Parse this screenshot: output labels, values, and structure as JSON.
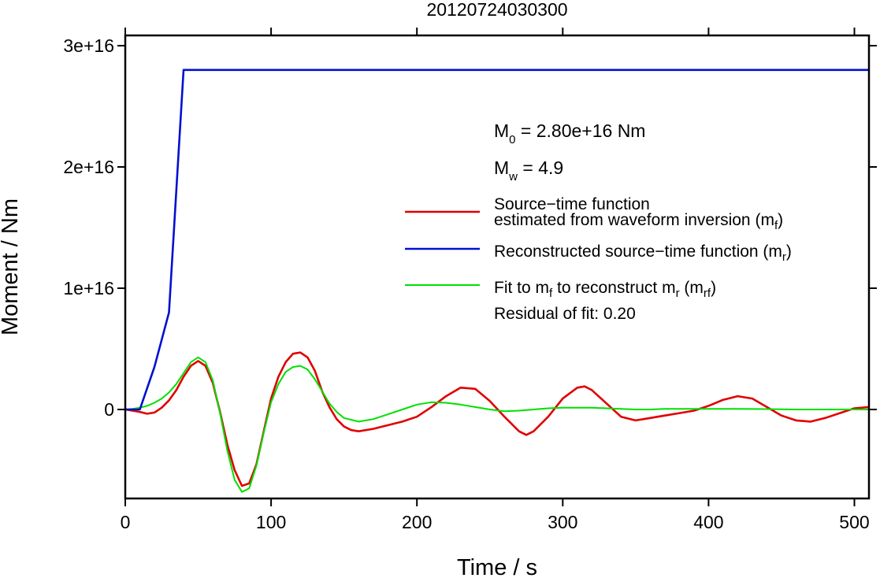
{
  "chart_data": {
    "type": "line",
    "title": "20120724030300",
    "xlabel": "Time / s",
    "ylabel": "Moment / Nm",
    "xlim": [
      0,
      510
    ],
    "ylim": [
      -7500000000000000.0,
      3.05e+16
    ],
    "x_ticks": [
      0,
      100,
      200,
      300,
      400,
      500
    ],
    "x_tick_labels": [
      "0",
      "100",
      "200",
      "300",
      "400",
      "500"
    ],
    "y_ticks": [
      0,
      1e+16,
      2e+16,
      3e+16
    ],
    "y_tick_labels": [
      "0",
      "1e+16",
      "2e+16",
      "3e+16"
    ],
    "grid": false,
    "legend_position": "right",
    "annotations": {
      "m0_label": "M",
      "m0_sub": "0",
      "m0_value": " = 2.80e+16 Nm",
      "mw_label": "M",
      "mw_sub": "w",
      "mw_value": " = 4.9",
      "residual": "Residual of fit: 0.20"
    },
    "legend": [
      {
        "line1": "Source−time function",
        "line2_pre": "estimated from waveform inversion (m",
        "line2_sub": "f",
        "line2_post": ")",
        "color": "#e00000"
      },
      {
        "pre": "Reconstructed source−time function (m",
        "sub": "r",
        "post": ")",
        "color": "#0010d0"
      },
      {
        "pre": "Fit to m",
        "sub1": "f",
        "mid": " to reconstruct m",
        "sub2": "r",
        "mid2": " (m",
        "sub3": "rf",
        "post": ")",
        "color": "#00e000"
      }
    ],
    "series": [
      {
        "name": "Source−time function estimated from waveform inversion (mf)",
        "color": "#e00000",
        "x": [
          0,
          5,
          10,
          15,
          20,
          25,
          30,
          35,
          40,
          45,
          50,
          55,
          60,
          65,
          70,
          75,
          80,
          85,
          90,
          95,
          100,
          105,
          110,
          115,
          120,
          125,
          130,
          135,
          140,
          145,
          150,
          155,
          160,
          170,
          180,
          190,
          200,
          210,
          220,
          230,
          240,
          250,
          260,
          270,
          275,
          280,
          290,
          300,
          310,
          315,
          320,
          330,
          340,
          350,
          360,
          370,
          380,
          390,
          400,
          410,
          420,
          430,
          440,
          450,
          460,
          470,
          480,
          490,
          500,
          510
        ],
        "y": [
          0,
          -100000000000000.0,
          -200000000000000.0,
          -350000000000000.0,
          -250000000000000.0,
          150000000000000.0,
          750000000000000.0,
          1600000000000000.0,
          2700000000000000.0,
          3600000000000000.0,
          4000000000000000.0,
          3600000000000000.0,
          2200000000000000.0,
          -200000000000000.0,
          -2900000000000000.0,
          -5000000000000000.0,
          -6300000000000000.0,
          -6100000000000000.0,
          -4500000000000000.0,
          -1800000000000000.0,
          900000000000000.0,
          2700000000000000.0,
          3900000000000000.0,
          4600000000000000.0,
          4700000000000000.0,
          4300000000000000.0,
          3200000000000000.0,
          1500000000000000.0,
          200000000000000.0,
          -800000000000000.0,
          -1400000000000000.0,
          -1700000000000000.0,
          -1800000000000000.0,
          -1600000000000000.0,
          -1300000000000000.0,
          -1000000000000000.0,
          -600000000000000.0,
          200000000000000.0,
          1100000000000000.0,
          1800000000000000.0,
          1700000000000000.0,
          700000000000000.0,
          -600000000000000.0,
          -1800000000000000.0,
          -2100000000000000.0,
          -1800000000000000.0,
          -600000000000000.0,
          900000000000000.0,
          1800000000000000.0,
          1900000000000000.0,
          1600000000000000.0,
          500000000000000.0,
          -600000000000000.0,
          -900000000000000.0,
          -700000000000000.0,
          -500000000000000.0,
          -300000000000000.0,
          -100000000000000.0,
          300000000000000.0,
          800000000000000.0,
          1100000000000000.0,
          900000000000000.0,
          200000000000000.0,
          -500000000000000.0,
          -900000000000000.0,
          -1000000000000000.0,
          -700000000000000.0,
          -300000000000000.0,
          100000000000000.0,
          200000000000000.0
        ]
      },
      {
        "name": "Reconstructed source−time function (mr)",
        "color": "#0010d0",
        "x": [
          0,
          10,
          20,
          30,
          40,
          510
        ],
        "y": [
          0,
          0,
          3500000000000000.0,
          8000000000000000.0,
          2.8e+16,
          2.8e+16
        ]
      },
      {
        "name": "Fit to mf to reconstruct mr (mrf)",
        "color": "#00e000",
        "x": [
          0,
          5,
          10,
          15,
          20,
          25,
          30,
          35,
          40,
          45,
          50,
          55,
          60,
          65,
          70,
          75,
          80,
          85,
          90,
          95,
          100,
          105,
          110,
          115,
          120,
          125,
          130,
          135,
          140,
          145,
          150,
          160,
          170,
          180,
          190,
          200,
          210,
          220,
          230,
          240,
          250,
          260,
          270,
          280,
          290,
          300,
          310,
          320,
          330,
          340,
          350,
          360,
          370,
          380,
          390,
          400,
          420,
          440,
          460,
          480,
          500,
          510
        ],
        "y": [
          0,
          50000000000000.0,
          150000000000000.0,
          300000000000000.0,
          550000000000000.0,
          900000000000000.0,
          1400000000000000.0,
          2100000000000000.0,
          3000000000000000.0,
          3900000000000000.0,
          4300000000000000.0,
          3900000000000000.0,
          2400000000000000.0,
          -300000000000000.0,
          -3400000000000000.0,
          -5800000000000000.0,
          -6800000000000000.0,
          -6500000000000000.0,
          -4600000000000000.0,
          -1900000000000000.0,
          600000000000000.0,
          2100000000000000.0,
          3100000000000000.0,
          3500000000000000.0,
          3600000000000000.0,
          3300000000000000.0,
          2500000000000000.0,
          1500000000000000.0,
          500000000000000.0,
          -200000000000000.0,
          -700000000000000.0,
          -1000000000000000.0,
          -800000000000000.0,
          -400000000000000.0,
          0.0,
          400000000000000.0,
          600000000000000.0,
          550000000000000.0,
          400000000000000.0,
          200000000000000.0,
          0.0,
          -150000000000000.0,
          -100000000000000.0,
          0.0,
          100000000000000.0,
          150000000000000.0,
          150000000000000.0,
          150000000000000.0,
          100000000000000.0,
          50000000000000.0,
          0.0,
          0.0,
          50000000000000.0,
          50000000000000.0,
          50000000000000.0,
          50000000000000.0,
          50000000000000.0,
          30000000000000.0,
          0.0,
          0.0,
          0.0,
          0.0
        ]
      }
    ]
  }
}
